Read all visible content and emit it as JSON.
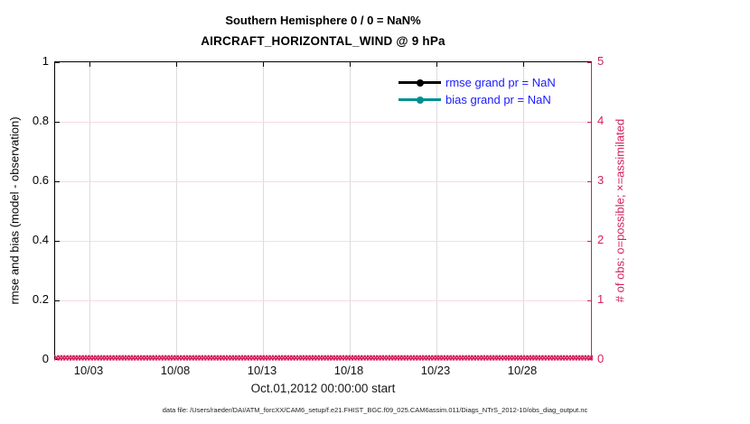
{
  "figure": {
    "title_line1": "Southern Hemisphere 0 / 0 = NaN%",
    "title_line2": "AIRCRAFT_HORIZONTAL_WIND @ 9 hPa",
    "xlabel": "Oct.01,2012 00:00:00 start",
    "footer": "data file: /Users/raeder/DAI/ATM_forcXX/CAM6_setup/f.e21.FHIST_BGC.f09_025.CAM6assim.011/Diags_NTrS_2012-10/obs_diag_output.nc"
  },
  "axes": {
    "left": {
      "label": "rmse and bias (model - observation)",
      "ticks": [
        "0",
        "0.2",
        "0.4",
        "0.6",
        "0.8",
        "1"
      ],
      "color": "#000000"
    },
    "right": {
      "label": "# of obs: o=possible; ×=assimilated",
      "ticks": [
        "0",
        "1",
        "2",
        "3",
        "4",
        "5"
      ],
      "color": "#D1215C"
    },
    "x": {
      "ticks": [
        "10/03",
        "10/08",
        "10/13",
        "10/18",
        "10/23",
        "10/28"
      ]
    }
  },
  "legend": {
    "text_color": "#1A1AFF",
    "items": [
      {
        "label": "rmse grand pr = NaN",
        "color": "#000000",
        "marker": "filled-circle"
      },
      {
        "label": "bias grand pr = NaN",
        "color": "#008F8F",
        "marker": "filled-circle"
      }
    ]
  },
  "colors": {
    "right_axis": "#D1215C",
    "marker_x": "#D1215C",
    "grid_vertical": "#DCDCDC",
    "grid_horizontal": "#F7D9E4",
    "left_axis": "#000000"
  },
  "chart_data": {
    "type": "line",
    "title": "Southern Hemisphere 0 / 0 = NaN%",
    "subtitle": "AIRCRAFT_HORIZONTAL_WIND @ 9 hPa",
    "xlabel": "Oct.01,2012 00:00:00 start",
    "ylabel_left": "rmse and bias (model - observation)",
    "ylabel_right": "# of obs: o=possible; ×=assimilated",
    "x_ticks": [
      "10/03",
      "10/08",
      "10/13",
      "10/18",
      "10/23",
      "10/28"
    ],
    "x_range": [
      "2012-10-01 00:00",
      "2012-11-01 00:00"
    ],
    "ylim_left": [
      0,
      1
    ],
    "ylim_right": [
      0,
      5
    ],
    "grid": true,
    "legend_position": "inside-top-right",
    "series": [
      {
        "name": "rmse grand pr = NaN",
        "axis": "left",
        "values": "NaN",
        "note": "all values NaN - no line drawn"
      },
      {
        "name": "bias grand pr = NaN",
        "axis": "left",
        "values": "NaN",
        "note": "all values NaN - no line drawn"
      },
      {
        "name": "assimilated obs (×)",
        "axis": "right",
        "constant_value": 0,
        "note": "dense × markers at 0 spanning the entire date range"
      },
      {
        "name": "possible obs (o)",
        "axis": "right",
        "constant_value": 0,
        "note": "coincident with × markers at 0"
      }
    ]
  }
}
